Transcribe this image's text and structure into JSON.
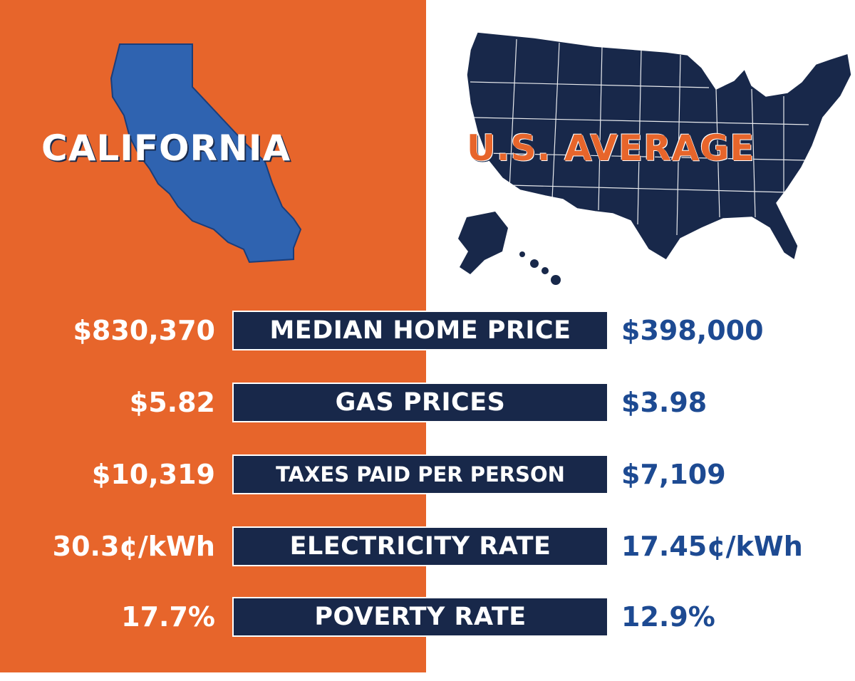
{
  "headings": {
    "california": "CALIFORNIA",
    "us_average": "U.S. AVERAGE"
  },
  "colors": {
    "orange": "#e7652b",
    "navy": "#18284a",
    "blue": "#2f63b0",
    "value_blue": "#1d4a92"
  },
  "icons": {
    "california_map": "california-state-silhouette",
    "us_map": "united-states-map"
  },
  "stats": [
    {
      "california": "$830,370",
      "label": "MEDIAN HOME PRICE",
      "us": "$398,000"
    },
    {
      "california": "$5.82",
      "label": "GAS PRICES",
      "us": "$3.98"
    },
    {
      "california": "$10,319",
      "label": "TAXES PAID PER PERSON",
      "us": "$7,109"
    },
    {
      "california": "30.3¢/kWh",
      "label": "ELECTRICITY RATE",
      "us": "17.45¢/kWh"
    },
    {
      "california": "17.7%",
      "label": "POVERTY RATE",
      "us": "12.9%"
    }
  ]
}
